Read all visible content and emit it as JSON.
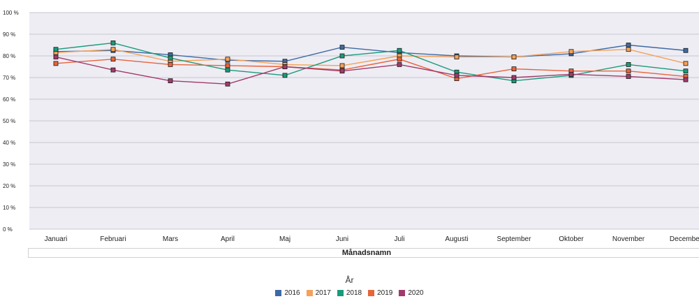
{
  "chart_data": {
    "type": "line",
    "xlabel": "Månadsnamn",
    "ylabel": "",
    "legend_title": "År",
    "legend_position": "bottom-center",
    "grid": true,
    "ylim": [
      0,
      100
    ],
    "y_ticks": [
      "0 %",
      "10 %",
      "20 %",
      "30 %",
      "40 %",
      "50 %",
      "60 %",
      "70 %",
      "80 %",
      "90 %",
      "100 %"
    ],
    "categories": [
      "Januari",
      "Februari",
      "Mars",
      "April",
      "Maj",
      "Juni",
      "Juli",
      "Augusti",
      "September",
      "Oktober",
      "November",
      "December"
    ],
    "series": [
      {
        "name": "2016",
        "color": "#3e6aa3",
        "values": [
          82,
          82.5,
          80.5,
          78,
          77.5,
          84,
          81.5,
          80,
          79.5,
          81,
          85,
          82.5
        ]
      },
      {
        "name": "2017",
        "color": "#f4a259",
        "values": [
          81.5,
          83,
          77.5,
          78.5,
          76,
          75.5,
          80,
          79.5,
          79.5,
          82,
          83,
          76.5
        ]
      },
      {
        "name": "2018",
        "color": "#1a9a7a",
        "values": [
          83,
          86,
          79,
          73.5,
          71,
          80,
          82.5,
          72.5,
          68.5,
          71,
          76,
          73
        ]
      },
      {
        "name": "2019",
        "color": "#e8643b",
        "values": [
          76.5,
          78.5,
          76,
          75.5,
          75,
          73.5,
          78.5,
          69.5,
          74,
          73,
          73,
          70.5
        ]
      },
      {
        "name": "2020",
        "color": "#a23a6b",
        "values": [
          79.5,
          73.5,
          68.5,
          67,
          75,
          73,
          76,
          71,
          70,
          71.5,
          70.5,
          69
        ]
      }
    ]
  },
  "colors": {
    "plot_background": "#eeedf4",
    "gridline": "#c7c7d2",
    "marker_outline": "#1a1a1a"
  }
}
